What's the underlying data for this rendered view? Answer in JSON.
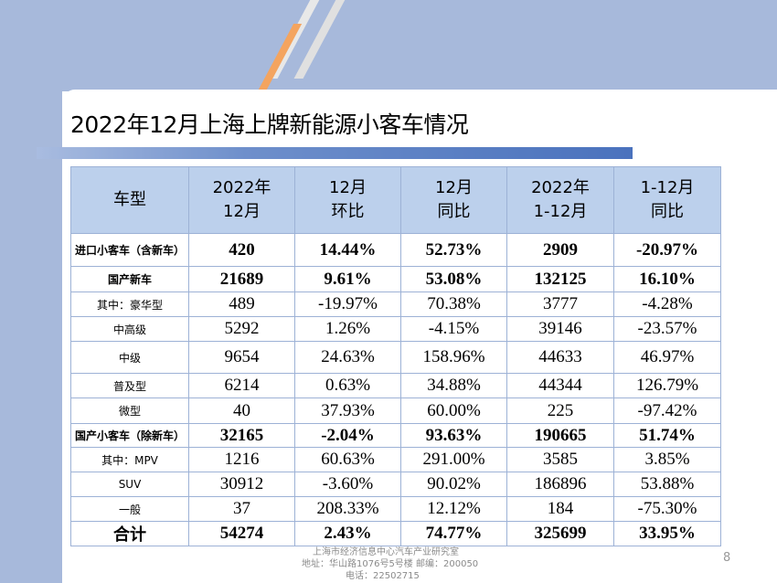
{
  "slide": {
    "title": "2022年12月上海上牌新能源小客车情况",
    "page_number": "8",
    "footer": {
      "line1": "上海市经济信息中心汽车产业研究室",
      "line2": "地址：华山路1076号5号楼    邮编：200050",
      "line3": "电话：22502715"
    }
  },
  "table": {
    "headers": [
      [
        "车型"
      ],
      [
        "2022年",
        "12月"
      ],
      [
        "12月",
        "环比"
      ],
      [
        "12月",
        "同比"
      ],
      [
        "2022年",
        "1-12月"
      ],
      [
        "1-12月",
        "同比"
      ]
    ],
    "rows": [
      [
        "进口小客车（含新车）",
        "420",
        "14.44%",
        "52.73%",
        "2909",
        "-20.97%"
      ],
      [
        "国产新车",
        "21689",
        "9.61%",
        "53.08%",
        "132125",
        "16.10%"
      ],
      [
        "其中：豪华型",
        "489",
        "-19.97%",
        "70.38%",
        "3777",
        "-4.28%"
      ],
      [
        "中高级",
        "5292",
        "1.26%",
        "-4.15%",
        "39146",
        "-23.57%"
      ],
      [
        "中级",
        "9654",
        "24.63%",
        "158.96%",
        "44633",
        "46.97%"
      ],
      [
        "普及型",
        "6214",
        "0.63%",
        "34.88%",
        "44344",
        "126.79%"
      ],
      [
        "微型",
        "40",
        "37.93%",
        "60.00%",
        "225",
        "-97.42%"
      ],
      [
        "国产小客车（除新车）",
        "32165",
        "-2.04%",
        "93.63%",
        "190665",
        "51.74%"
      ],
      [
        "其中：MPV",
        "1216",
        "60.63%",
        "291.00%",
        "3585",
        "3.85%"
      ],
      [
        "SUV",
        "30912",
        "-3.60%",
        "90.02%",
        "186896",
        "53.88%"
      ],
      [
        "一般",
        "37",
        "208.33%",
        "12.12%",
        "184",
        "-75.30%"
      ],
      [
        "合计",
        "54274",
        "2.43%",
        "74.77%",
        "325699",
        "33.95%"
      ]
    ]
  }
}
